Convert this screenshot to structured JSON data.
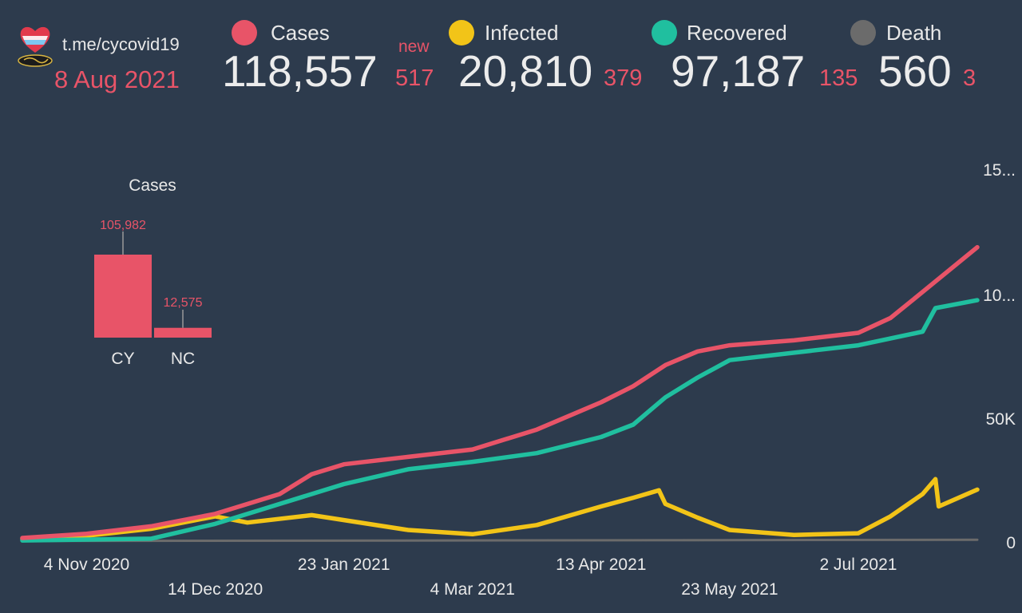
{
  "header": {
    "link": "t.me/cycovid19",
    "date": "8 Aug 2021",
    "new_label": "new",
    "stats": [
      {
        "key": "cases",
        "label": "Cases",
        "value": "118,557",
        "delta": "517",
        "color": "#e85468"
      },
      {
        "key": "infected",
        "label": "Infected",
        "value": "20,810",
        "delta": "379",
        "color": "#f2c418"
      },
      {
        "key": "recovered",
        "label": "Recovered",
        "value": "97,187",
        "delta": "135",
        "color": "#20bf9f"
      },
      {
        "key": "death",
        "label": "Death",
        "value": "560",
        "delta": "3",
        "color": "#6b6b6b"
      }
    ]
  },
  "chart_data": [
    {
      "type": "line",
      "x_tick_labels": [
        "4 Nov 2020",
        "14 Dec 2020",
        "23 Jan 2021",
        "4 Mar 2021",
        "13 Apr 2021",
        "23 May 2021",
        "2 Jul 2021"
      ],
      "y_tick_labels": [
        "0",
        "50K",
        "10...",
        "15..."
      ],
      "ylim": [
        0,
        150000
      ],
      "y_axis_position": "right",
      "grid": false,
      "series": [
        {
          "name": "Cases",
          "color": "#e85468",
          "points": [
            [
              "2020-10-15",
              1300
            ],
            [
              "2020-11-04",
              3000
            ],
            [
              "2020-11-24",
              6000
            ],
            [
              "2020-12-14",
              11000
            ],
            [
              "2021-01-03",
              19000
            ],
            [
              "2021-01-13",
              27000
            ],
            [
              "2021-01-23",
              31000
            ],
            [
              "2021-02-12",
              34000
            ],
            [
              "2021-03-04",
              37000
            ],
            [
              "2021-03-24",
              45000
            ],
            [
              "2021-04-13",
              56000
            ],
            [
              "2021-04-23",
              62500
            ],
            [
              "2021-05-03",
              71000
            ],
            [
              "2021-05-13",
              76500
            ],
            [
              "2021-05-23",
              79000
            ],
            [
              "2021-06-12",
              81000
            ],
            [
              "2021-07-02",
              84000
            ],
            [
              "2021-07-12",
              90000
            ],
            [
              "2021-07-22",
              100500
            ],
            [
              "2021-08-08",
              118557
            ]
          ]
        },
        {
          "name": "Recovered",
          "color": "#20bf9f",
          "points": [
            [
              "2020-10-15",
              300
            ],
            [
              "2020-11-24",
              1000
            ],
            [
              "2020-12-14",
              7000
            ],
            [
              "2021-01-03",
              15000
            ],
            [
              "2021-01-23",
              23000
            ],
            [
              "2021-02-12",
              29000
            ],
            [
              "2021-03-04",
              32000
            ],
            [
              "2021-03-24",
              35500
            ],
            [
              "2021-04-13",
              42000
            ],
            [
              "2021-04-23",
              47000
            ],
            [
              "2021-05-03",
              58000
            ],
            [
              "2021-05-13",
              66000
            ],
            [
              "2021-05-23",
              73000
            ],
            [
              "2021-06-12",
              76000
            ],
            [
              "2021-07-02",
              79000
            ],
            [
              "2021-07-22",
              84500
            ],
            [
              "2021-07-26",
              94000
            ],
            [
              "2021-08-08",
              97187
            ]
          ]
        },
        {
          "name": "Infected",
          "color": "#f2c418",
          "points": [
            [
              "2020-10-15",
              900
            ],
            [
              "2020-11-04",
              2200
            ],
            [
              "2020-11-24",
              5000
            ],
            [
              "2020-12-14",
              10000
            ],
            [
              "2020-12-24",
              7500
            ],
            [
              "2021-01-13",
              10500
            ],
            [
              "2021-02-12",
              4500
            ],
            [
              "2021-03-04",
              2800
            ],
            [
              "2021-03-24",
              6500
            ],
            [
              "2021-04-13",
              14000
            ],
            [
              "2021-04-23",
              17500
            ],
            [
              "2021-05-01",
              20500
            ],
            [
              "2021-05-03",
              15000
            ],
            [
              "2021-05-13",
              9500
            ],
            [
              "2021-05-23",
              4500
            ],
            [
              "2021-06-12",
              2500
            ],
            [
              "2021-07-02",
              3200
            ],
            [
              "2021-07-12",
              10000
            ],
            [
              "2021-07-22",
              19000
            ],
            [
              "2021-07-26",
              25000
            ],
            [
              "2021-07-27",
              14000
            ],
            [
              "2021-08-08",
              20810
            ]
          ]
        },
        {
          "name": "Death",
          "color": "#6b6b6b",
          "points": [
            [
              "2020-10-15",
              50
            ],
            [
              "2021-08-08",
              560
            ]
          ]
        }
      ]
    },
    {
      "type": "bar",
      "title": "Cases",
      "categories": [
        "CY",
        "NC"
      ],
      "values": [
        105982,
        12575
      ],
      "value_labels": [
        "105,982",
        "12,575"
      ],
      "color": "#e85468"
    }
  ]
}
